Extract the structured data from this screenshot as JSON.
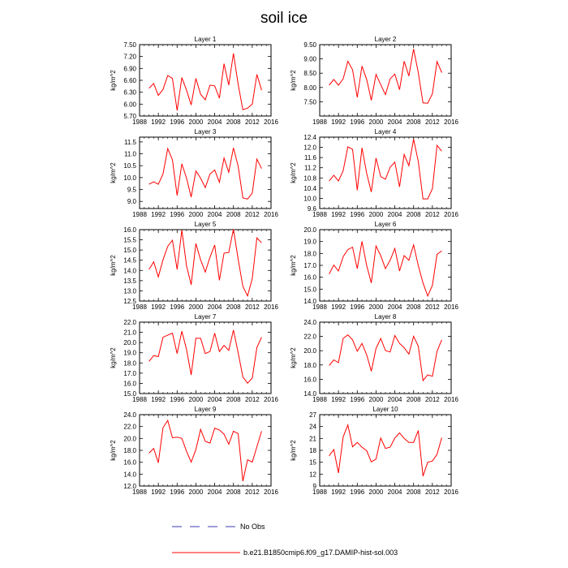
{
  "title": "soil ice",
  "legend": {
    "obs_label": "No Obs",
    "model_label": "b.e21.B1850cmip6.f09_g17.DAMIP-hist-sol.003",
    "model_color": "#ff0000",
    "obs_color": "#3b3bb0"
  },
  "chart_data": [
    {
      "type": "line",
      "title": "Layer 1",
      "ylabel": "kg/m^2",
      "xlim": [
        1988,
        2016
      ],
      "xticks": [
        "1988",
        "1992",
        "1996",
        "2000",
        "2004",
        "2008",
        "2012",
        "2016"
      ],
      "ylim": [
        5.7,
        7.5
      ],
      "yticks": [
        "5.70",
        "6.00",
        "6.30",
        "6.60",
        "6.90",
        "7.20",
        "7.50"
      ],
      "x": [
        1990,
        1991,
        1992,
        1993,
        1994,
        1995,
        1996,
        1997,
        1998,
        1999,
        2000,
        2001,
        2002,
        2003,
        2004,
        2005,
        2006,
        2007,
        2008,
        2009,
        2010,
        2011,
        2012,
        2013,
        2014
      ],
      "series": [
        {
          "values": [
            6.4,
            6.52,
            6.22,
            6.37,
            6.72,
            6.65,
            5.84,
            6.67,
            6.35,
            5.98,
            6.65,
            6.25,
            6.11,
            6.48,
            6.46,
            6.15,
            7.02,
            6.48,
            7.28,
            6.5,
            5.86,
            5.9,
            6.0,
            6.75,
            6.35
          ]
        }
      ]
    },
    {
      "type": "line",
      "title": "Layer 2",
      "ylabel": "kg/m^2",
      "xlim": [
        1988,
        2016
      ],
      "xticks": [
        "1988",
        "1992",
        "1996",
        "2000",
        "2004",
        "2008",
        "2012",
        "2016"
      ],
      "ylim": [
        7.0,
        9.5
      ],
      "yticks": [
        "7.50",
        "8.00",
        "8.50",
        "9.00",
        "9.50"
      ],
      "x": [
        1990,
        1991,
        1992,
        1993,
        1994,
        1995,
        1996,
        1997,
        1998,
        1999,
        2000,
        2001,
        2002,
        2003,
        2004,
        2005,
        2006,
        2007,
        2008,
        2009,
        2010,
        2011,
        2012,
        2013,
        2014
      ],
      "series": [
        {
          "values": [
            8.08,
            8.28,
            8.08,
            8.3,
            8.92,
            8.62,
            7.65,
            8.75,
            8.28,
            7.55,
            8.46,
            8.1,
            7.75,
            8.3,
            8.47,
            7.92,
            8.92,
            8.4,
            9.35,
            8.52,
            7.46,
            7.45,
            7.78,
            8.91,
            8.52
          ]
        }
      ]
    },
    {
      "type": "line",
      "title": "Layer 3",
      "ylabel": "kg/m^2",
      "xlim": [
        1988,
        2016
      ],
      "xticks": [
        "1988",
        "1992",
        "1996",
        "2000",
        "2004",
        "2008",
        "2012",
        "2016"
      ],
      "ylim": [
        8.7,
        11.7
      ],
      "yticks": [
        "9.0",
        "9.5",
        "10.0",
        "10.5",
        "11.0",
        "11.5"
      ],
      "x": [
        1990,
        1991,
        1992,
        1993,
        1994,
        1995,
        1996,
        1997,
        1998,
        1999,
        2000,
        2001,
        2002,
        2003,
        2004,
        2005,
        2006,
        2007,
        2008,
        2009,
        2010,
        2011,
        2012,
        2013,
        2014
      ],
      "series": [
        {
          "values": [
            9.72,
            9.82,
            9.72,
            10.15,
            11.22,
            10.75,
            9.25,
            10.58,
            9.98,
            9.18,
            10.28,
            9.98,
            9.58,
            10.15,
            10.32,
            9.8,
            10.82,
            10.22,
            11.25,
            10.48,
            9.15,
            9.1,
            9.35,
            10.78,
            10.38
          ]
        }
      ]
    },
    {
      "type": "line",
      "title": "Layer 4",
      "ylabel": "kg/m^2",
      "xlim": [
        1988,
        2016
      ],
      "xticks": [
        "1988",
        "1992",
        "1996",
        "2000",
        "2004",
        "2008",
        "2012",
        "2016"
      ],
      "ylim": [
        9.6,
        12.4
      ],
      "yticks": [
        "9.6",
        "10.0",
        "10.4",
        "10.8",
        "11.2",
        "11.6",
        "12.0",
        "12.4"
      ],
      "x": [
        1990,
        1991,
        1992,
        1993,
        1994,
        1995,
        1996,
        1997,
        1998,
        1999,
        2000,
        2001,
        2002,
        2003,
        2004,
        2005,
        2006,
        2007,
        2008,
        2009,
        2010,
        2011,
        2012,
        2013,
        2014
      ],
      "series": [
        {
          "values": [
            10.68,
            10.9,
            10.68,
            11.08,
            12.02,
            11.92,
            10.32,
            11.98,
            10.98,
            10.25,
            11.58,
            10.85,
            10.75,
            11.22,
            11.42,
            10.45,
            11.72,
            11.28,
            12.32,
            11.45,
            9.98,
            9.98,
            10.38,
            12.08,
            11.85
          ]
        }
      ]
    },
    {
      "type": "line",
      "title": "Layer 5",
      "ylabel": "kg/m^2",
      "xlim": [
        1988,
        2016
      ],
      "xticks": [
        "1988",
        "1992",
        "1996",
        "2000",
        "2004",
        "2008",
        "2012",
        "2016"
      ],
      "ylim": [
        12.5,
        16.0
      ],
      "yticks": [
        "12.5",
        "13.0",
        "13.5",
        "14.0",
        "14.5",
        "15.0",
        "15.5",
        "16.0"
      ],
      "x": [
        1990,
        1991,
        1992,
        1993,
        1994,
        1995,
        1996,
        1997,
        1998,
        1999,
        2000,
        2001,
        2002,
        2003,
        2004,
        2005,
        2006,
        2007,
        2008,
        2009,
        2010,
        2011,
        2012,
        2013,
        2014
      ],
      "series": [
        {
          "values": [
            14.05,
            14.42,
            13.68,
            14.52,
            15.18,
            15.48,
            14.05,
            15.98,
            14.22,
            13.3,
            15.32,
            14.52,
            13.92,
            14.65,
            15.25,
            13.52,
            14.85,
            14.88,
            16.02,
            14.55,
            13.22,
            12.75,
            13.6,
            15.6,
            15.35
          ]
        }
      ]
    },
    {
      "type": "line",
      "title": "Layer 6",
      "ylabel": "kg/m^2",
      "xlim": [
        1988,
        2016
      ],
      "xticks": [
        "1988",
        "1992",
        "1996",
        "2000",
        "2004",
        "2008",
        "2012",
        "2016"
      ],
      "ylim": [
        14.0,
        20.0
      ],
      "yticks": [
        "14.0",
        "15.0",
        "16.0",
        "17.0",
        "18.0",
        "19.0",
        "20.0"
      ],
      "x": [
        1990,
        1991,
        1992,
        1993,
        1994,
        1995,
        1996,
        1997,
        1998,
        1999,
        2000,
        2001,
        2002,
        2003,
        2004,
        2005,
        2006,
        2007,
        2008,
        2009,
        2010,
        2011,
        2012,
        2013,
        2014
      ],
      "series": [
        {
          "values": [
            16.28,
            17.02,
            16.52,
            17.72,
            18.32,
            18.52,
            16.72,
            19.02,
            16.98,
            15.52,
            18.62,
            17.82,
            16.72,
            17.42,
            18.42,
            16.52,
            17.82,
            17.42,
            18.72,
            16.98,
            15.52,
            14.42,
            15.32,
            17.92,
            18.22
          ]
        }
      ]
    },
    {
      "type": "line",
      "title": "Layer 7",
      "ylabel": "kg/m^2",
      "xlim": [
        1988,
        2016
      ],
      "xticks": [
        "1988",
        "1992",
        "1996",
        "2000",
        "2004",
        "2008",
        "2012",
        "2016"
      ],
      "ylim": [
        15.0,
        22.0
      ],
      "yticks": [
        "15.0",
        "16.0",
        "17.0",
        "18.0",
        "19.0",
        "20.0",
        "21.0",
        "22.0"
      ],
      "x": [
        1990,
        1991,
        1992,
        1993,
        1994,
        1995,
        1996,
        1997,
        1998,
        1999,
        2000,
        2001,
        2002,
        2003,
        2004,
        2005,
        2006,
        2007,
        2008,
        2009,
        2010,
        2011,
        2012,
        2013,
        2014
      ],
      "series": [
        {
          "values": [
            18.15,
            18.72,
            18.62,
            20.52,
            20.72,
            20.92,
            18.92,
            21.12,
            19.32,
            16.82,
            20.42,
            20.42,
            18.92,
            19.12,
            20.92,
            19.12,
            19.72,
            19.22,
            21.22,
            19.02,
            16.62,
            16.02,
            16.52,
            19.52,
            20.52
          ]
        }
      ]
    },
    {
      "type": "line",
      "title": "Layer 8",
      "ylabel": "kg/m^2",
      "xlim": [
        1988,
        2016
      ],
      "xticks": [
        "1988",
        "1992",
        "1996",
        "2000",
        "2004",
        "2008",
        "2012",
        "2016"
      ],
      "ylim": [
        14.0,
        24.0
      ],
      "yticks": [
        "14.0",
        "16.0",
        "18.0",
        "20.0",
        "22.0",
        "24.0"
      ],
      "x": [
        1990,
        1991,
        1992,
        1993,
        1994,
        1995,
        1996,
        1997,
        1998,
        1999,
        2000,
        2001,
        2002,
        2003,
        2004,
        2005,
        2006,
        2007,
        2008,
        2009,
        2010,
        2011,
        2012,
        2013,
        2014
      ],
      "series": [
        {
          "values": [
            17.92,
            18.72,
            18.32,
            21.72,
            22.22,
            21.52,
            19.92,
            21.02,
            19.42,
            17.12,
            20.32,
            21.72,
            20.02,
            19.82,
            22.12,
            21.02,
            20.42,
            19.52,
            22.02,
            20.62,
            15.82,
            16.62,
            16.42,
            19.92,
            21.52
          ]
        }
      ]
    },
    {
      "type": "line",
      "title": "Layer 9",
      "ylabel": "kg/m^2",
      "xlim": [
        1988,
        2016
      ],
      "xticks": [
        "1988",
        "1992",
        "1996",
        "2000",
        "2004",
        "2008",
        "2012",
        "2016"
      ],
      "ylim": [
        12.0,
        24.0
      ],
      "yticks": [
        "12.0",
        "14.0",
        "16.0",
        "18.0",
        "20.0",
        "22.0",
        "24.0"
      ],
      "x": [
        1990,
        1991,
        1992,
        1993,
        1994,
        1995,
        1996,
        1997,
        1998,
        1999,
        2000,
        2001,
        2002,
        2003,
        2004,
        2005,
        2006,
        2007,
        2008,
        2009,
        2010,
        2011,
        2012,
        2013,
        2014
      ],
      "series": [
        {
          "values": [
            17.52,
            18.32,
            15.92,
            21.82,
            23.02,
            20.12,
            20.22,
            20.02,
            17.82,
            16.02,
            18.12,
            21.52,
            19.52,
            19.22,
            21.72,
            21.42,
            20.72,
            19.02,
            21.22,
            20.82,
            12.82,
            16.42,
            16.02,
            18.62,
            21.22
          ]
        }
      ]
    },
    {
      "type": "line",
      "title": "Layer 10",
      "ylabel": "kg/m^2",
      "xlim": [
        1988,
        2016
      ],
      "xticks": [
        "1988",
        "1992",
        "1996",
        "2000",
        "2004",
        "2008",
        "2012",
        "2016"
      ],
      "ylim": [
        9,
        27
      ],
      "yticks": [
        "9",
        "12",
        "15",
        "18",
        "21",
        "24",
        "27"
      ],
      "x": [
        1990,
        1991,
        1992,
        1993,
        1994,
        1995,
        1996,
        1997,
        1998,
        1999,
        2000,
        2001,
        2002,
        2003,
        2004,
        2005,
        2006,
        2007,
        2008,
        2009,
        2010,
        2011,
        2012,
        2013,
        2014
      ],
      "series": [
        {
          "values": [
            16.6,
            18.2,
            12.3,
            21.4,
            24.4,
            18.9,
            20.0,
            18.8,
            17.9,
            15.1,
            15.8,
            21.1,
            18.5,
            18.8,
            21.1,
            22.4,
            21.0,
            20.0,
            20.0,
            23.0,
            11.5,
            15.0,
            15.3,
            17.0,
            21.2
          ]
        }
      ]
    }
  ]
}
